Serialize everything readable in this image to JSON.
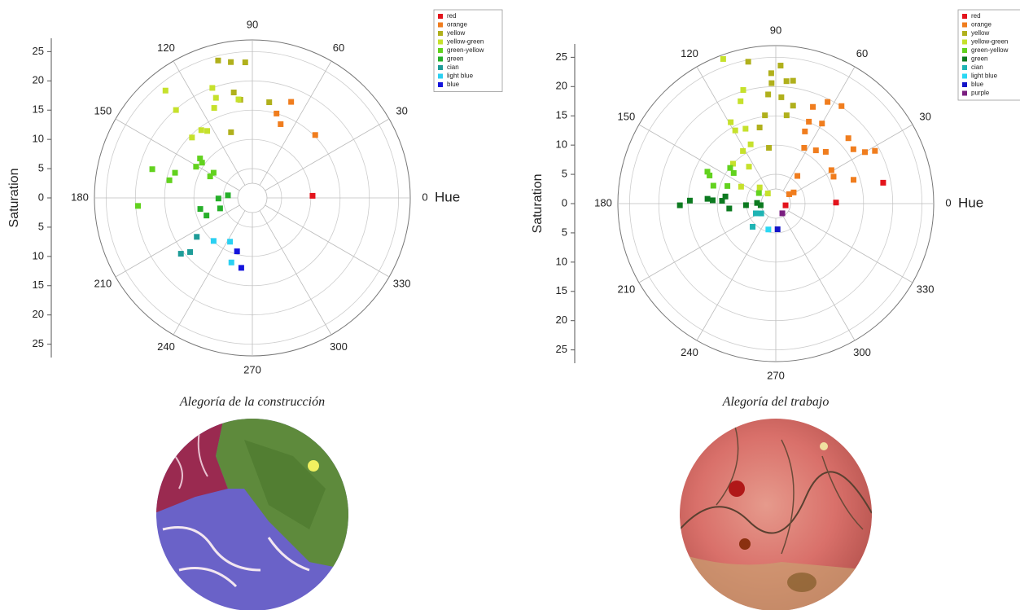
{
  "chart_data": [
    {
      "type": "polar-scatter",
      "title": "Alegoría de la construcción",
      "r_label": "Saturation",
      "theta_label": "Hue",
      "rlim": [
        0,
        27
      ],
      "rticks": [
        0,
        5,
        10,
        15,
        20,
        25
      ],
      "thetaticks": [
        0,
        30,
        60,
        90,
        120,
        150,
        180,
        210,
        240,
        270,
        300,
        330
      ],
      "grid": true,
      "legend": "top-right",
      "series": [
        {
          "name": "red",
          "color": "#e3141c",
          "hue": [
            2
          ],
          "saturation": [
            10.3
          ]
        },
        {
          "name": "orange",
          "color": "#f07d1e",
          "hue": [
            68,
            74,
            69,
            45
          ],
          "saturation": [
            17.7,
            15,
            13.5,
            15.2
          ]
        },
        {
          "name": "yellow",
          "color": "#b0b01c",
          "hue": [
            104,
            99,
            93,
            100,
            97,
            108,
            80
          ],
          "saturation": [
            24.2,
            23.5,
            23.2,
            18.3,
            16.9,
            11.8,
            16.6
          ]
        },
        {
          "name": "yellow-green",
          "color": "#c6e12c",
          "hue": [
            129,
            131,
            110,
            110,
            113,
            127,
            135,
            124,
            98
          ],
          "saturation": [
            23.6,
            19.9,
            20,
            18.2,
            16.7,
            14.5,
            14.6,
            13.8,
            17
          ]
        },
        {
          "name": "green-yellow",
          "color": "#62d21e",
          "hue": [
            164,
            168,
            162,
            143,
            145,
            147,
            153,
            151,
            184
          ],
          "saturation": [
            17.8,
            14.5,
            13.9,
            11.2,
            10.5,
            7.9,
            8.1,
            11,
            19.6
          ]
        },
        {
          "name": "green",
          "color": "#26b02a",
          "hue": [
            181,
            174,
            192,
            201,
            198
          ],
          "saturation": [
            5.8,
            4.2,
            9.1,
            8.4,
            5.8
          ]
        },
        {
          "name": "cian",
          "color": "#1e9c98",
          "hue": [
            215,
            218,
            221
          ],
          "saturation": [
            11.6,
            15.5,
            14.1
          ]
        },
        {
          "name": "light blue",
          "color": "#2ad0f2",
          "hue": [
            228,
            243,
            252
          ],
          "saturation": [
            9.9,
            8.4,
            11.6
          ]
        },
        {
          "name": "blue",
          "color": "#1414dc",
          "hue": [
            254,
            261
          ],
          "saturation": [
            9.5,
            12.1
          ]
        }
      ]
    },
    {
      "type": "polar-scatter",
      "title": "Alegoría del trabajo",
      "r_label": "Saturation",
      "theta_label": "Hue",
      "rlim": [
        0,
        27
      ],
      "rticks": [
        0,
        5,
        10,
        15,
        20,
        25
      ],
      "thetaticks": [
        0,
        30,
        60,
        90,
        120,
        150,
        180,
        210,
        240,
        270,
        300,
        330
      ],
      "grid": true,
      "legend": "top-right",
      "series": [
        {
          "name": "red",
          "color": "#e3141c",
          "hue": [
            11,
            1,
            350
          ],
          "saturation": [
            18.7,
            10.3,
            1.7
          ]
        },
        {
          "name": "orange",
          "color": "#f07d1e",
          "hue": [
            28,
            30,
            35,
            17,
            31,
            25,
            56,
            63,
            69,
            60,
            68,
            68,
            53,
            46,
            63,
            52,
            35,
            32,
            42
          ],
          "saturation": [
            19.2,
            17.6,
            16.2,
            13.9,
            11.1,
            10.9,
            20.1,
            19.5,
            17.7,
            15.8,
            15.1,
            13.3,
            11.4,
            12.3,
            10.7,
            6,
            2.8,
            3.6,
            16.7
          ]
        },
        {
          "name": "yellow",
          "color": "#b0b01c",
          "hue": [
            101,
            92,
            92,
            88,
            85,
            82,
            87,
            80,
            94,
            97,
            102,
            97,
            83
          ],
          "saturation": [
            24.7,
            22.3,
            20.6,
            23.6,
            21,
            21.2,
            18.2,
            17,
            18.7,
            15.2,
            13.3,
            9.6,
            15.2
          ]
        },
        {
          "name": "yellow-green",
          "color": "#c6e12c",
          "hue": [
            110,
            106,
            109,
            119,
            119,
            112,
            113,
            122,
            126,
            137,
            154,
            135,
            128
          ],
          "saturation": [
            26.3,
            20.2,
            18.5,
            15.9,
            14.3,
            13.8,
            11,
            10.6,
            7.8,
            10,
            6.6,
            3.9,
            2.2
          ]
        },
        {
          "name": "green-yellow",
          "color": "#62d21e",
          "hue": [
            155,
            157,
            142,
            144,
            164,
            160,
            148
          ],
          "saturation": [
            12.9,
            12.3,
            9.9,
            8.9,
            11.1,
            8.8,
            3.4
          ]
        },
        {
          "name": "green",
          "color": "#0c7a20",
          "hue": [
            181,
            178,
            176,
            177,
            177,
            172,
            186,
            183,
            178,
            186
          ],
          "saturation": [
            16.4,
            14.7,
            11.7,
            10.8,
            9.2,
            8.7,
            8,
            5.1,
            3.2,
            2.6
          ]
        },
        {
          "name": "cian",
          "color": "#1eb4b4",
          "hue": [
            206,
            214,
            225
          ],
          "saturation": [
            3.8,
            3,
            5.6
          ]
        },
        {
          "name": "light blue",
          "color": "#2ad8f4",
          "hue": [
            254
          ],
          "saturation": [
            4.6
          ]
        },
        {
          "name": "blue",
          "color": "#1414c8",
          "hue": [
            274
          ],
          "saturation": [
            4.4
          ]
        },
        {
          "name": "purple",
          "color": "#7a1e80",
          "hue": [
            304
          ],
          "saturation": [
            2
          ]
        }
      ]
    }
  ]
}
